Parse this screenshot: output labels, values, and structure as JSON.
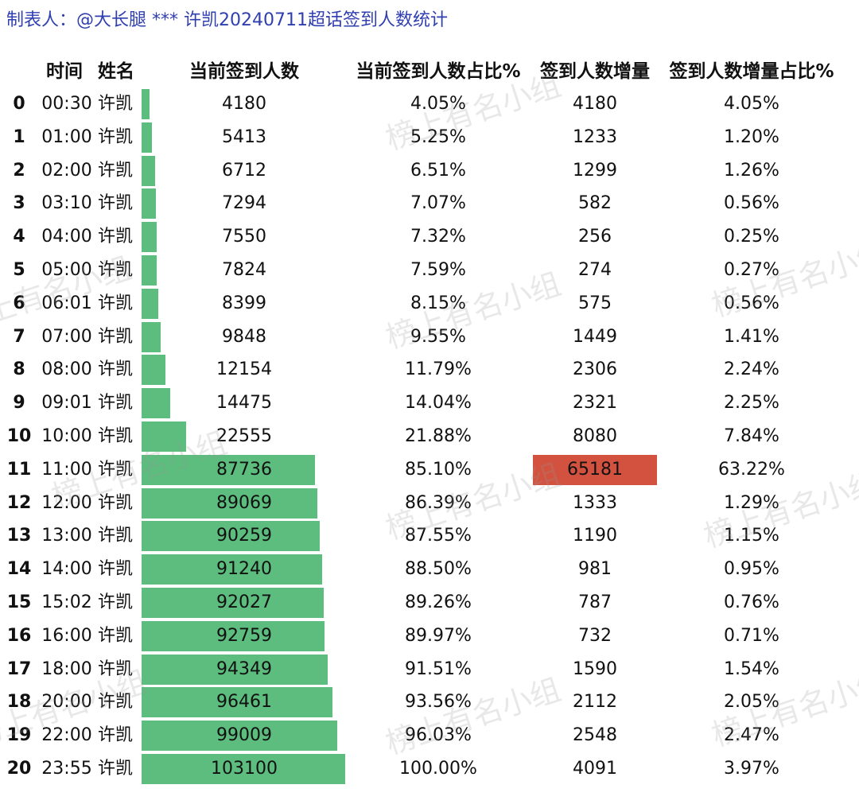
{
  "title": "制表人：@大长腿 *** 许凯20240711超话签到人数统计",
  "headers": {
    "time": "时间",
    "name": "姓名",
    "current": "当前签到人数",
    "current_pct": "当前签到人数占比%",
    "increase": "签到人数增量",
    "increase_pct": "签到人数增量占比%"
  },
  "watermark": "榜上有名小组",
  "colors": {
    "bar": "#5cbd7e",
    "highlight": "#d2523f",
    "title": "#2f3fb0"
  },
  "rows": [
    {
      "idx": "0",
      "time": "00:30",
      "name": "许凯",
      "current": "4180",
      "current_pct": "4.05%",
      "increase": "4180",
      "increase_pct": "4.05%",
      "fraction": 0.0405
    },
    {
      "idx": "1",
      "time": "01:00",
      "name": "许凯",
      "current": "5413",
      "current_pct": "5.25%",
      "increase": "1233",
      "increase_pct": "1.20%",
      "fraction": 0.0525
    },
    {
      "idx": "2",
      "time": "02:00",
      "name": "许凯",
      "current": "6712",
      "current_pct": "6.51%",
      "increase": "1299",
      "increase_pct": "1.26%",
      "fraction": 0.0651
    },
    {
      "idx": "3",
      "time": "03:10",
      "name": "许凯",
      "current": "7294",
      "current_pct": "7.07%",
      "increase": "582",
      "increase_pct": "0.56%",
      "fraction": 0.0707
    },
    {
      "idx": "4",
      "time": "04:00",
      "name": "许凯",
      "current": "7550",
      "current_pct": "7.32%",
      "increase": "256",
      "increase_pct": "0.25%",
      "fraction": 0.0732
    },
    {
      "idx": "5",
      "time": "05:00",
      "name": "许凯",
      "current": "7824",
      "current_pct": "7.59%",
      "increase": "274",
      "increase_pct": "0.27%",
      "fraction": 0.0759
    },
    {
      "idx": "6",
      "time": "06:01",
      "name": "许凯",
      "current": "8399",
      "current_pct": "8.15%",
      "increase": "575",
      "increase_pct": "0.56%",
      "fraction": 0.0815
    },
    {
      "idx": "7",
      "time": "07:00",
      "name": "许凯",
      "current": "9848",
      "current_pct": "9.55%",
      "increase": "1449",
      "increase_pct": "1.41%",
      "fraction": 0.0955
    },
    {
      "idx": "8",
      "time": "08:00",
      "name": "许凯",
      "current": "12154",
      "current_pct": "11.79%",
      "increase": "2306",
      "increase_pct": "2.24%",
      "fraction": 0.1179
    },
    {
      "idx": "9",
      "time": "09:01",
      "name": "许凯",
      "current": "14475",
      "current_pct": "14.04%",
      "increase": "2321",
      "increase_pct": "2.25%",
      "fraction": 0.1404
    },
    {
      "idx": "10",
      "time": "10:00",
      "name": "许凯",
      "current": "22555",
      "current_pct": "21.88%",
      "increase": "8080",
      "increase_pct": "7.84%",
      "fraction": 0.2188
    },
    {
      "idx": "11",
      "time": "11:00",
      "name": "许凯",
      "current": "87736",
      "current_pct": "85.10%",
      "increase": "65181",
      "increase_pct": "63.22%",
      "fraction": 0.851,
      "highlight": true
    },
    {
      "idx": "12",
      "time": "12:00",
      "name": "许凯",
      "current": "89069",
      "current_pct": "86.39%",
      "increase": "1333",
      "increase_pct": "1.29%",
      "fraction": 0.8639
    },
    {
      "idx": "13",
      "time": "13:00",
      "name": "许凯",
      "current": "90259",
      "current_pct": "87.55%",
      "increase": "1190",
      "increase_pct": "1.15%",
      "fraction": 0.8755
    },
    {
      "idx": "14",
      "time": "14:00",
      "name": "许凯",
      "current": "91240",
      "current_pct": "88.50%",
      "increase": "981",
      "increase_pct": "0.95%",
      "fraction": 0.885
    },
    {
      "idx": "15",
      "time": "15:02",
      "name": "许凯",
      "current": "92027",
      "current_pct": "89.26%",
      "increase": "787",
      "increase_pct": "0.76%",
      "fraction": 0.8926
    },
    {
      "idx": "16",
      "time": "16:00",
      "name": "许凯",
      "current": "92759",
      "current_pct": "89.97%",
      "increase": "732",
      "increase_pct": "0.71%",
      "fraction": 0.8997
    },
    {
      "idx": "17",
      "time": "18:00",
      "name": "许凯",
      "current": "94349",
      "current_pct": "91.51%",
      "increase": "1590",
      "increase_pct": "1.54%",
      "fraction": 0.9151
    },
    {
      "idx": "18",
      "time": "20:00",
      "name": "许凯",
      "current": "96461",
      "current_pct": "93.56%",
      "increase": "2112",
      "increase_pct": "2.05%",
      "fraction": 0.9356
    },
    {
      "idx": "19",
      "time": "22:00",
      "name": "许凯",
      "current": "99009",
      "current_pct": "96.03%",
      "increase": "2548",
      "increase_pct": "2.47%",
      "fraction": 0.9603
    },
    {
      "idx": "20",
      "time": "23:55",
      "name": "许凯",
      "current": "103100",
      "current_pct": "100.00%",
      "increase": "4091",
      "increase_pct": "3.97%",
      "fraction": 1.0
    }
  ]
}
